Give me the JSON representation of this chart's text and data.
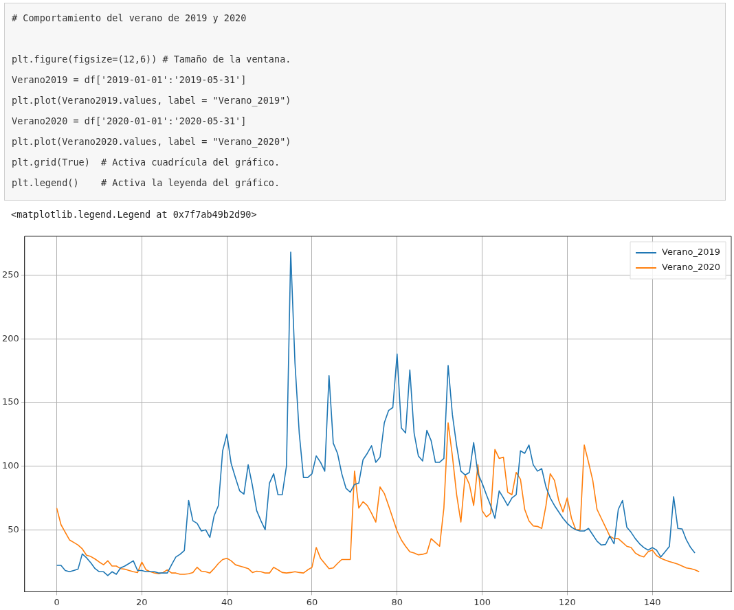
{
  "chart_data": {
    "type": "line",
    "annotations": [
      "# Comportamiento del verano de 2019 y 2020",
      "plt.figure(figsize=(12,6)) # Tamaño de la ventana.",
      "Verano2019 = df['2019-01-01':'2019-05-31']",
      "plt.plot(Verano2019.values, label = \"Verano_2019\")",
      "Verano2020 = df['2020-01-01':'2020-05-31']",
      "plt.plot(Verano2020.values, label = \"Verano_2020\")",
      "plt.grid(True)  # Activa cuadrícula del gráfico.",
      "plt.legend()    # Activa la leyenda del gráfico.",
      "<matplotlib.legend.Legend at 0x7f7ab49b2d90>"
    ],
    "x": [
      0,
      1,
      2,
      3,
      4,
      5,
      6,
      7,
      8,
      9,
      10,
      11,
      12,
      13,
      14,
      15,
      16,
      17,
      18,
      19,
      20,
      21,
      22,
      23,
      24,
      25,
      26,
      27,
      28,
      29,
      30,
      31,
      32,
      33,
      34,
      35,
      36,
      37,
      38,
      39,
      40,
      41,
      42,
      43,
      44,
      45,
      46,
      47,
      48,
      49,
      50,
      51,
      52,
      53,
      54,
      55,
      56,
      57,
      58,
      59,
      60,
      61,
      62,
      63,
      64,
      65,
      66,
      67,
      68,
      69,
      70,
      71,
      72,
      73,
      74,
      75,
      76,
      77,
      78,
      79,
      80,
      81,
      82,
      83,
      84,
      85,
      86,
      87,
      88,
      89,
      90,
      91,
      92,
      93,
      94,
      95,
      96,
      97,
      98,
      99,
      100,
      101,
      102,
      103,
      104,
      105,
      106,
      107,
      108,
      109,
      110,
      111,
      112,
      113,
      114,
      115,
      116,
      117,
      118,
      119,
      120,
      121,
      122,
      123,
      124,
      125,
      126,
      127,
      128,
      129,
      130,
      131,
      132,
      133,
      134,
      135,
      136,
      137,
      138,
      139,
      140,
      141,
      142,
      143,
      144,
      145,
      146,
      147,
      148,
      149,
      150,
      151
    ],
    "series": [
      {
        "name": "Verano_2019",
        "color": "#1f77b4",
        "values": [
          22,
          22,
          18,
          17,
          18,
          19,
          31,
          28,
          24,
          19.5,
          17,
          17,
          14,
          17,
          15,
          20,
          21.5,
          23.5,
          25.6,
          18,
          18,
          17,
          17,
          17,
          16,
          16,
          16,
          22.5,
          28.6,
          30.7,
          33.7,
          73,
          57,
          55,
          49,
          50,
          44,
          61,
          69,
          112,
          125,
          102,
          91,
          80.5,
          78,
          101,
          84.6,
          65,
          57,
          50,
          86.6,
          94,
          77.5,
          77.5,
          100,
          268,
          181,
          126,
          91,
          91,
          94,
          108,
          103,
          96,
          171,
          118,
          110,
          94,
          82.5,
          79.5,
          85.6,
          86.6,
          105,
          110,
          116,
          103,
          107,
          134,
          143.6,
          146,
          188,
          130,
          126,
          175.5,
          126,
          108,
          104,
          128,
          120,
          103,
          103,
          106,
          179,
          140.5,
          116,
          96,
          93,
          95,
          118.5,
          94,
          86.6,
          77.5,
          69,
          59,
          80.5,
          75,
          69,
          75,
          77.5,
          112,
          110,
          116.5,
          101,
          96,
          98,
          83.6,
          75,
          69,
          64,
          59,
          55,
          52,
          50,
          49,
          49,
          51,
          46,
          41,
          38,
          38.4,
          45,
          39,
          66,
          73,
          52,
          48,
          43,
          39,
          36,
          34,
          36,
          34,
          28.6,
          32.7,
          36.8,
          76,
          51,
          50.6,
          42,
          36,
          31.7,
          null
        ]
      },
      {
        "name": "Verano_2020",
        "color": "#ff7f0e",
        "values": [
          67,
          54,
          48,
          42,
          40,
          38,
          35,
          30,
          29,
          27,
          24.6,
          22.5,
          25.6,
          21.5,
          21.5,
          19.5,
          19,
          18,
          17,
          16.4,
          24.6,
          18.5,
          17,
          16,
          15.4,
          16.4,
          18.5,
          16,
          16,
          15,
          15,
          15.4,
          16.4,
          20.5,
          17.4,
          17,
          16,
          19.5,
          23.5,
          26.6,
          27.6,
          25.6,
          22.5,
          21.5,
          20.5,
          19.5,
          16.4,
          17.4,
          17,
          16,
          16,
          20.5,
          18.5,
          16.4,
          16,
          16.4,
          17,
          16.4,
          16,
          18.5,
          20.5,
          36,
          27.6,
          23.5,
          19.5,
          20,
          23.5,
          26.6,
          26.6,
          26.6,
          96,
          67,
          72,
          69,
          63,
          56,
          83.6,
          78.5,
          69,
          59,
          49,
          42,
          37,
          32.7,
          31.7,
          30.3,
          30.7,
          31.7,
          43,
          40,
          37,
          67,
          134,
          108,
          77.5,
          56,
          93,
          85.6,
          69,
          101,
          65,
          60,
          63,
          113,
          106,
          107,
          79.5,
          77.5,
          95,
          89.7,
          66,
          57,
          53,
          52.6,
          51,
          69,
          94,
          88.7,
          73,
          64,
          75,
          59,
          50,
          50,
          116.5,
          103,
          88.7,
          66,
          59,
          52,
          45,
          43,
          43,
          40,
          37,
          36,
          31.7,
          29.7,
          28.6,
          32.7,
          34,
          29.7,
          27.6,
          26.2,
          25,
          24,
          23,
          21.5,
          20,
          19.5,
          18.5,
          17
        ]
      }
    ],
    "xlim": [
      -7.55,
      158.55
    ],
    "xticks": [
      0,
      20,
      40,
      60,
      80,
      100,
      120,
      140
    ],
    "ylim": [
      1.3,
      280.5
    ],
    "yticks": [
      50,
      100,
      150,
      200,
      250
    ],
    "grid": true,
    "legend": "top right",
    "line_style": "solid",
    "marker": "none"
  }
}
